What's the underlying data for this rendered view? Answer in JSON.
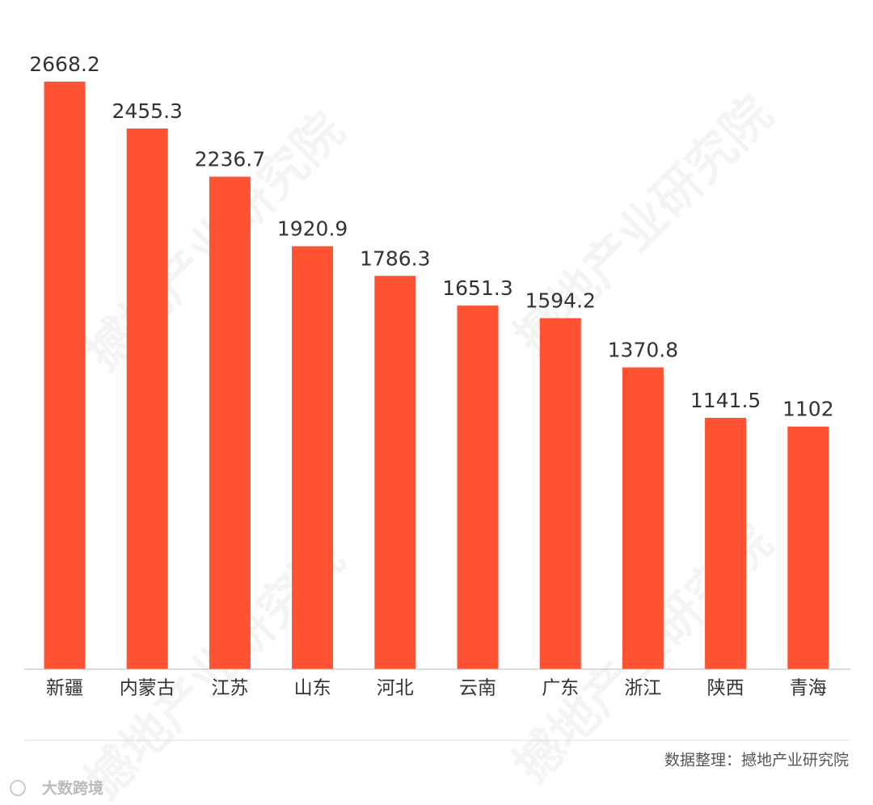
{
  "chart_data": {
    "type": "bar",
    "categories": [
      "新疆",
      "内蒙古",
      "江苏",
      "山东",
      "河北",
      "云南",
      "广东",
      "浙江",
      "陕西",
      "青海"
    ],
    "values": [
      2668.2,
      2455.3,
      2236.7,
      1920.9,
      1786.3,
      1651.3,
      1594.2,
      1370.8,
      1141.5,
      1102
    ],
    "color": "#ff5233",
    "source": "数据整理：撼地产业研究院",
    "watermark": "撼地产业研究院",
    "logo_text": "大数跨境"
  }
}
